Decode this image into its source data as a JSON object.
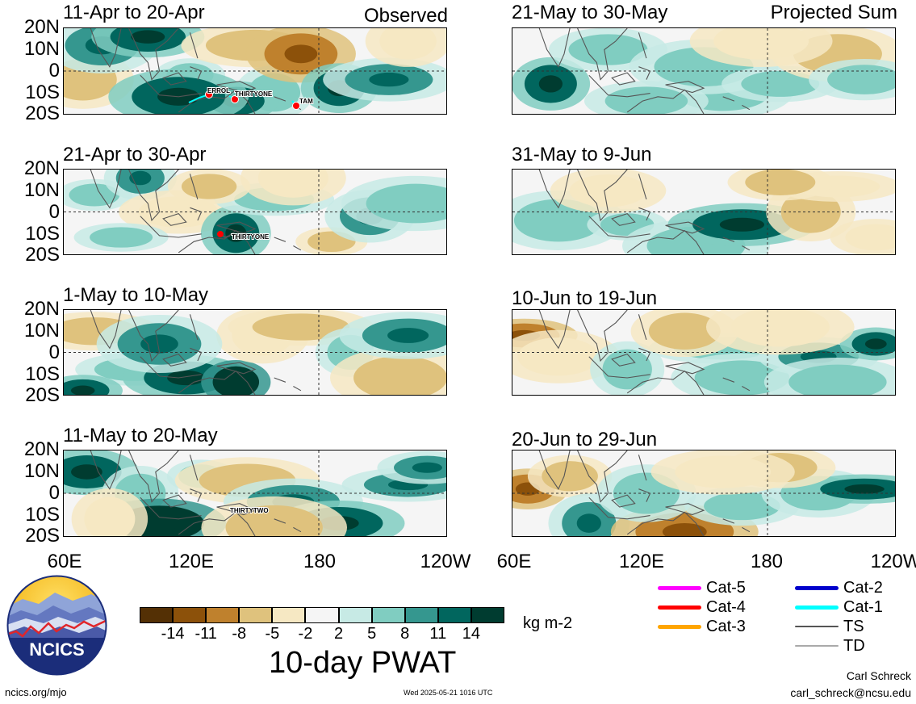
{
  "observed_label": "Observed",
  "projected_label": "Projected Sum",
  "panels_left": [
    {
      "title": "11-Apr to 20-Apr",
      "storms": [
        "ERROL",
        "THIRTYONE",
        "TAM"
      ]
    },
    {
      "title": "21-Apr to 30-Apr",
      "storms": [
        "THIRTYONE"
      ]
    },
    {
      "title": "1-May to 10-May",
      "storms": []
    },
    {
      "title": "11-May to 20-May",
      "storms": [
        "THIRTYTWO"
      ]
    }
  ],
  "panels_right": [
    {
      "title": "21-May to 30-May"
    },
    {
      "title": "31-May to 9-Jun"
    },
    {
      "title": "10-Jun to 19-Jun"
    },
    {
      "title": "20-Jun to 29-Jun"
    }
  ],
  "lat_labels": [
    "20N",
    "10N",
    "0",
    "10S",
    "20S"
  ],
  "lon_labels_left": [
    "60E",
    "120E",
    "180",
    "120W"
  ],
  "lon_labels_right": [
    "60E",
    "120E",
    "180",
    "120W"
  ],
  "colorbar": {
    "ticks": [
      "-14",
      "-11",
      "-8",
      "-5",
      "-2",
      "2",
      "5",
      "8",
      "11",
      "14"
    ],
    "colors": [
      "#543005",
      "#8c510a",
      "#bf812d",
      "#dfc27d",
      "#f6e8c3",
      "#f5f5f5",
      "#c7eae5",
      "#80cdc1",
      "#35978f",
      "#01665e",
      "#003c30"
    ],
    "units": "kg m-2",
    "title": "10-day PWAT"
  },
  "legend": [
    {
      "label": "Cat-5",
      "color": "#ff00ff"
    },
    {
      "label": "Cat-4",
      "color": "#ff0000"
    },
    {
      "label": "Cat-3",
      "color": "#ffa500"
    },
    {
      "label": "Cat-2",
      "color": "#0000cc"
    },
    {
      "label": "Cat-1",
      "color": "#00ffff"
    },
    {
      "label": "TS",
      "color": "#555555"
    },
    {
      "label": "TD",
      "color": "#aaaaaa"
    }
  ],
  "logo_text": "NCICS",
  "footer_left": "ncics.org/mjo",
  "footer_center": "Wed 2025-05-21 1016 UTC",
  "author_name": "Carl Schreck",
  "author_email": "carl_schreck@ncsu.edu"
}
